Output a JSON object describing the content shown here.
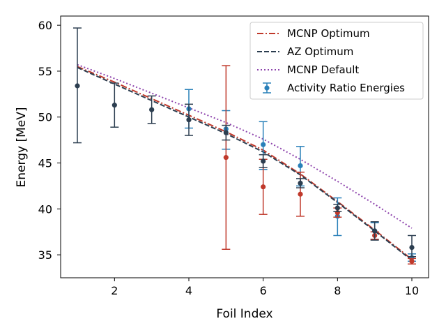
{
  "chart_data": {
    "type": "line",
    "title": "",
    "xlabel": "Foil Index",
    "ylabel": "Energy [MeV]",
    "xlim": [
      0.55,
      10.45
    ],
    "ylim": [
      32.5,
      61.0
    ],
    "xticks": [
      2,
      4,
      6,
      8,
      10
    ],
    "yticks": [
      35,
      40,
      45,
      50,
      55,
      60
    ],
    "grid": false,
    "legend_position": "top-right",
    "lines": [
      {
        "name": "MCNP Optimum",
        "color": "#c0392b",
        "style": "dashdot",
        "x": [
          1,
          2,
          3,
          4,
          5,
          6,
          7,
          8,
          9,
          10
        ],
        "y": [
          55.5,
          53.8,
          52.0,
          50.2,
          48.4,
          46.4,
          43.8,
          40.8,
          37.7,
          34.5
        ]
      },
      {
        "name": "AZ Optimum",
        "color": "#2c3e50",
        "style": "dashed",
        "x": [
          1,
          2,
          3,
          4,
          5,
          6,
          7,
          8,
          9,
          10
        ],
        "y": [
          55.4,
          53.6,
          51.8,
          50.0,
          48.2,
          46.2,
          43.7,
          40.7,
          37.6,
          34.4
        ]
      },
      {
        "name": "MCNP Default",
        "color": "#8e44ad",
        "style": "dotted",
        "x": [
          1,
          2,
          3,
          4,
          5,
          6,
          7,
          8,
          9,
          10
        ],
        "y": [
          55.7,
          54.2,
          52.6,
          51.0,
          49.4,
          47.6,
          45.4,
          43.0,
          40.5,
          37.9
        ]
      }
    ],
    "errorbar_series": [
      {
        "name": "Activity Ratio Energies",
        "color": "#2980b9",
        "in_legend": true,
        "points": [
          {
            "x": 4,
            "y": 50.9,
            "lo": 48.8,
            "hi": 53.0
          },
          {
            "x": 5,
            "y": 48.7,
            "lo": 46.5,
            "hi": 50.7
          },
          {
            "x": 6,
            "y": 47.0,
            "lo": 44.3,
            "hi": 49.5
          },
          {
            "x": 7,
            "y": 44.7,
            "lo": 42.5,
            "hi": 46.8
          },
          {
            "x": 8,
            "y": 39.2,
            "lo": 37.1,
            "hi": 41.2
          },
          {
            "x": 9,
            "y": 37.6,
            "lo": 36.7,
            "hi": 38.5
          },
          {
            "x": 10,
            "y": 34.7,
            "lo": 34.3,
            "hi": 35.1
          }
        ]
      },
      {
        "name": "",
        "color": "#c0392b",
        "in_legend": false,
        "points": [
          {
            "x": 5,
            "y": 45.6,
            "lo": 35.6,
            "hi": 55.6
          },
          {
            "x": 6,
            "y": 42.4,
            "lo": 39.4,
            "hi": 45.4
          },
          {
            "x": 7,
            "y": 41.6,
            "lo": 39.2,
            "hi": 44.0
          },
          {
            "x": 8,
            "y": 39.6,
            "lo": 39.1,
            "hi": 40.1
          },
          {
            "x": 9,
            "y": 37.1,
            "lo": 36.7,
            "hi": 37.5
          },
          {
            "x": 10,
            "y": 34.3,
            "lo": 34.0,
            "hi": 34.6
          }
        ]
      },
      {
        "name": "",
        "color": "#2c3e50",
        "in_legend": false,
        "points": [
          {
            "x": 1,
            "y": 53.4,
            "lo": 47.2,
            "hi": 59.7
          },
          {
            "x": 2,
            "y": 51.3,
            "lo": 48.9,
            "hi": 53.7
          },
          {
            "x": 3,
            "y": 50.8,
            "lo": 49.3,
            "hi": 52.3
          },
          {
            "x": 4,
            "y": 49.7,
            "lo": 48.0,
            "hi": 51.4
          },
          {
            "x": 5,
            "y": 48.3,
            "lo": 47.5,
            "hi": 49.1
          },
          {
            "x": 6,
            "y": 45.2,
            "lo": 44.5,
            "hi": 45.9
          },
          {
            "x": 7,
            "y": 42.8,
            "lo": 42.3,
            "hi": 43.3
          },
          {
            "x": 8,
            "y": 40.1,
            "lo": 39.7,
            "hi": 40.5
          },
          {
            "x": 9,
            "y": 37.6,
            "lo": 36.6,
            "hi": 38.6
          },
          {
            "x": 10,
            "y": 35.8,
            "lo": 34.8,
            "hi": 37.1
          }
        ]
      }
    ]
  }
}
